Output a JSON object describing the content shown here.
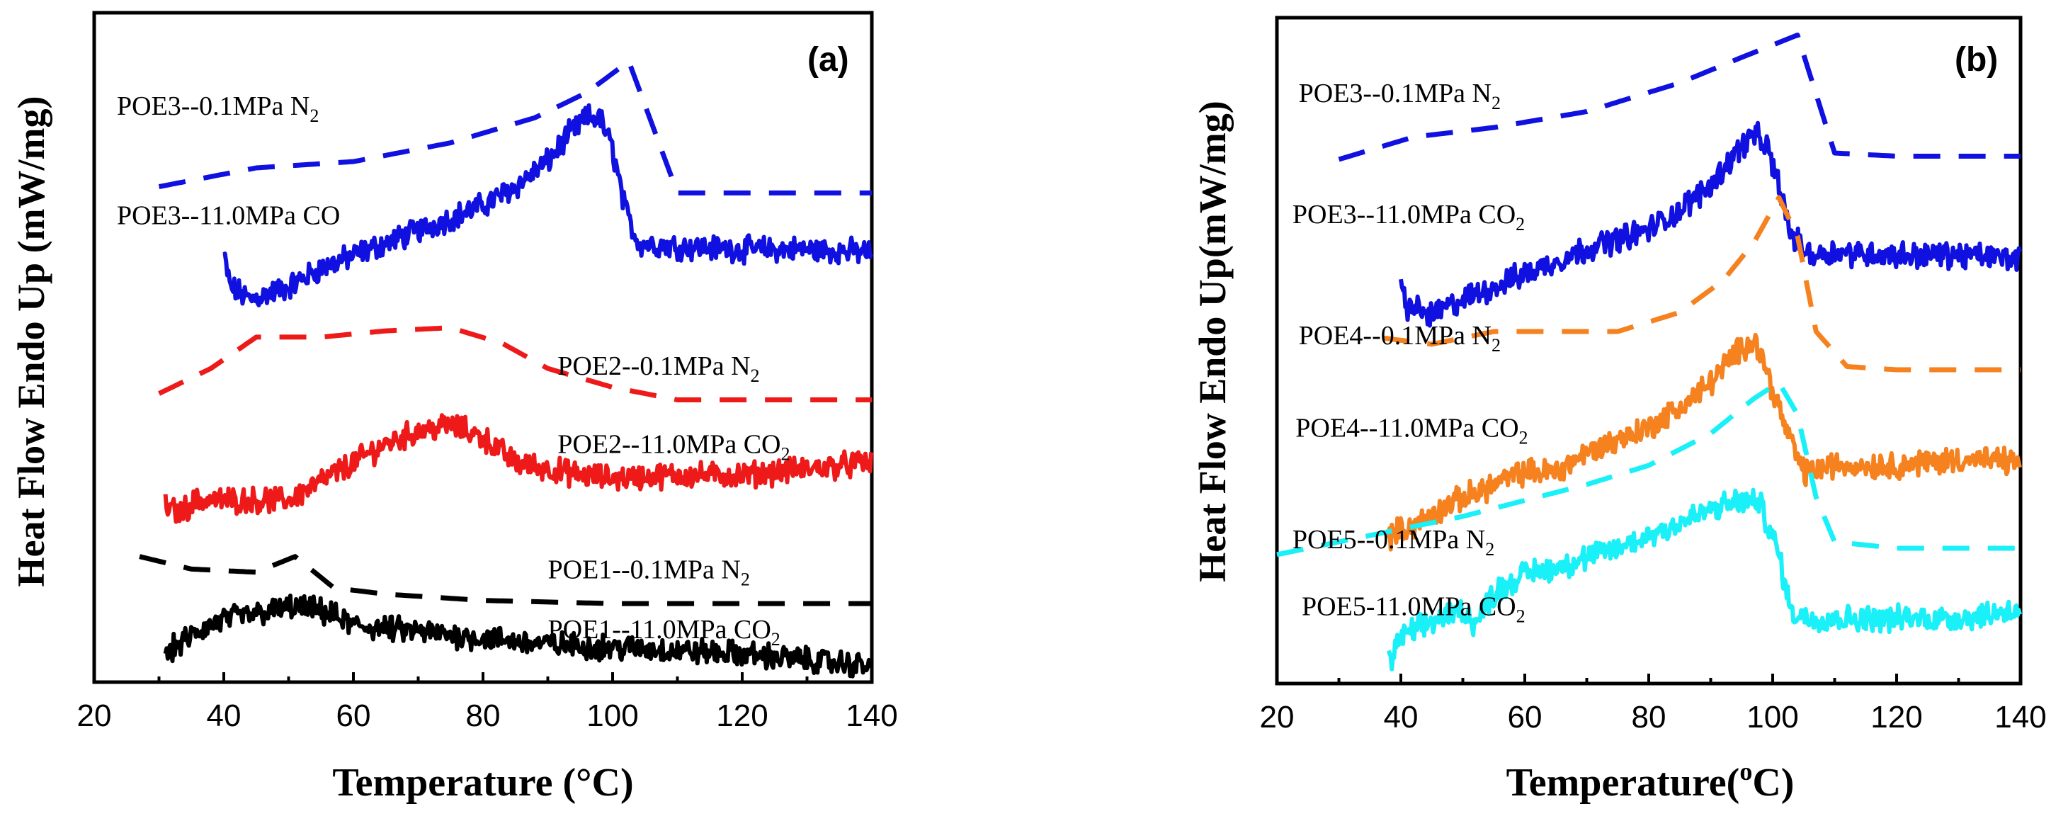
{
  "chart_data": [
    {
      "type": "line",
      "panel": "(a)",
      "xlabel": "Temperature (°C)",
      "ylabel": "Heat Flow Endo Up (mW/mg)",
      "xlim": [
        20,
        140
      ],
      "ylim": [
        0,
        100
      ],
      "xticks": [
        "20",
        "40",
        "60",
        "80",
        "100",
        "120",
        "140"
      ],
      "series": [
        {
          "name": "POE3--0.1MPa N2",
          "label_text": "POE3--0.1MPa N",
          "label_sub": "2",
          "color": "#1010e0",
          "style": "dashed",
          "label_at": [
            23.5,
            88.5
          ],
          "points": [
            [
              30,
              77
            ],
            [
              45,
              80
            ],
            [
              60,
              81
            ],
            [
              75,
              84
            ],
            [
              88,
              88
            ],
            [
              96,
              92
            ],
            [
              102.5,
              97
            ],
            [
              110,
              76
            ],
            [
              120,
              76
            ],
            [
              140,
              76
            ]
          ]
        },
        {
          "name": "POE3--11.0MPa CO",
          "label_text": "POE3--11.0MPa CO",
          "label_sub": "",
          "color": "#1010e0",
          "style": "noisy",
          "label_at": [
            23.5,
            71
          ],
          "points": [
            [
              40,
              66
            ],
            [
              41,
              61
            ],
            [
              44,
              59
            ],
            [
              50,
              61
            ],
            [
              55,
              64
            ],
            [
              60,
              66
            ],
            [
              65,
              68
            ],
            [
              70,
              70
            ],
            [
              75,
              72
            ],
            [
              80,
              74
            ],
            [
              85,
              77
            ],
            [
              90,
              81
            ],
            [
              93,
              85
            ],
            [
              96,
              88
            ],
            [
              98,
              88
            ],
            [
              100,
              83
            ],
            [
              102,
              73
            ],
            [
              104,
              68
            ],
            [
              110,
              67.5
            ],
            [
              120,
              67
            ],
            [
              130,
              67
            ],
            [
              140,
              66.5
            ]
          ]
        },
        {
          "name": "POE2--0.1MPa N2",
          "label_text": "POE2--0.1MPa N",
          "label_sub": "2",
          "color": "#ee1a1a",
          "style": "dashed",
          "label_at": [
            91.5,
            47
          ],
          "points": [
            [
              30,
              44
            ],
            [
              38,
              48
            ],
            [
              45,
              53
            ],
            [
              55,
              53
            ],
            [
              65,
              54
            ],
            [
              75,
              54.5
            ],
            [
              83,
              52
            ],
            [
              90,
              48
            ],
            [
              100,
              45
            ],
            [
              110,
              43
            ],
            [
              120,
              43
            ],
            [
              140,
              43
            ]
          ]
        },
        {
          "name": "POE2--11.0MPa CO2",
          "label_text": "POE2--11.0MPa CO",
          "label_sub": "2",
          "color": "#ee1a1a",
          "style": "noisy",
          "label_at": [
            91.5,
            34.5
          ],
          "points": [
            [
              31,
              26
            ],
            [
              33,
              25
            ],
            [
              36,
              27
            ],
            [
              45,
              27
            ],
            [
              50,
              27
            ],
            [
              55,
              30
            ],
            [
              60,
              33
            ],
            [
              65,
              36
            ],
            [
              70,
              38
            ],
            [
              75,
              39
            ],
            [
              80,
              37
            ],
            [
              85,
              33
            ],
            [
              90,
              32
            ],
            [
              95,
              31
            ],
            [
              100,
              30.5
            ],
            [
              110,
              31
            ],
            [
              120,
              31
            ],
            [
              130,
              32
            ],
            [
              140,
              33
            ]
          ]
        },
        {
          "name": "POE1--0.1MPa N2",
          "label_text": "POE1--0.1MPa N",
          "label_sub": "2",
          "color": "#000000",
          "style": "dashed",
          "label_at": [
            90,
            14.5
          ],
          "points": [
            [
              27,
              18
            ],
            [
              35,
              16
            ],
            [
              45,
              15.5
            ],
            [
              51,
              18
            ],
            [
              57,
              13
            ],
            [
              65,
              12
            ],
            [
              80,
              11
            ],
            [
              100,
              10.5
            ],
            [
              120,
              10.5
            ],
            [
              140,
              10.5
            ]
          ]
        },
        {
          "name": "POE1--11.0MPa CO2",
          "label_text": "POE1--11.0MPa CO",
          "label_sub": "2",
          "color": "#000000",
          "style": "noisy",
          "label_at": [
            90,
            5
          ],
          "points": [
            [
              31,
              2.5
            ],
            [
              36,
              6
            ],
            [
              40,
              8
            ],
            [
              46,
              9
            ],
            [
              51,
              10
            ],
            [
              56,
              9
            ],
            [
              60,
              7
            ],
            [
              70,
              6
            ],
            [
              80,
              5
            ],
            [
              90,
              4
            ],
            [
              100,
              3.5
            ],
            [
              110,
              3
            ],
            [
              120,
              2.5
            ],
            [
              130,
              1.5
            ],
            [
              140,
              0.5
            ]
          ]
        }
      ]
    },
    {
      "type": "line",
      "panel": "(b)",
      "xlabel": "Temperature(°C)",
      "xlabel_parts": [
        "Temperature(",
        "o",
        "C)"
      ],
      "ylabel": "Heat Flow Endo Up(mW/mg)",
      "xlim": [
        20,
        140
      ],
      "ylim": [
        0,
        100
      ],
      "xticks": [
        "20",
        "40",
        "60",
        "80",
        "100",
        "120",
        "140"
      ],
      "series": [
        {
          "name": "POE3--0.1MPa N2",
          "label_text": "POE3--0.1MPa N",
          "label_sub": "2",
          "color": "#1010e0",
          "style": "dashed",
          "label_at": [
            23.5,
            89
          ],
          "points": [
            [
              30,
              80
            ],
            [
              42,
              83.5
            ],
            [
              55,
              85
            ],
            [
              70,
              87.5
            ],
            [
              85,
              92
            ],
            [
              95,
              96
            ],
            [
              104,
              99.5
            ],
            [
              110,
              81
            ],
            [
              120,
              80.5
            ],
            [
              140,
              80.5
            ]
          ]
        },
        {
          "name": "POE3--11.0MPa CO2",
          "label_text": "POE3--11.0MPa CO",
          "label_sub": "2",
          "color": "#1010e0",
          "style": "noisy",
          "label_at": [
            22.5,
            70
          ],
          "points": [
            [
              40,
              60
            ],
            [
              41,
              57
            ],
            [
              45,
              55.5
            ],
            [
              50,
              58
            ],
            [
              55,
              60
            ],
            [
              60,
              62
            ],
            [
              65,
              64
            ],
            [
              70,
              66
            ],
            [
              75,
              67.5
            ],
            [
              80,
              69
            ],
            [
              85,
              72
            ],
            [
              90,
              76
            ],
            [
              94,
              81
            ],
            [
              97,
              84
            ],
            [
              99,
              82
            ],
            [
              101,
              76
            ],
            [
              103,
              68
            ],
            [
              106,
              65
            ],
            [
              110,
              65.5
            ],
            [
              120,
              65
            ],
            [
              130,
              65
            ],
            [
              140,
              64.5
            ]
          ]
        },
        {
          "name": "POE4--0.1MPa N2",
          "label_text": "POE4--0.1MPa N",
          "label_sub": "2",
          "color": "#f5811f",
          "style": "dashed",
          "label_at": [
            23.5,
            51
          ],
          "points": [
            [
              37,
              52
            ],
            [
              45,
              51
            ],
            [
              55,
              53
            ],
            [
              75,
              53
            ],
            [
              85,
              56
            ],
            [
              92,
              61
            ],
            [
              97,
              67
            ],
            [
              101,
              74
            ],
            [
              104,
              68
            ],
            [
              107,
              53
            ],
            [
              112,
              47.5
            ],
            [
              120,
              47
            ],
            [
              140,
              47
            ]
          ]
        },
        {
          "name": "POE4--11.0MPa CO2",
          "label_text": "POE4--11.0MPa CO",
          "label_sub": "2",
          "color": "#f5811f",
          "style": "noisy",
          "label_at": [
            23,
            36.5
          ],
          "points": [
            [
              38,
              21
            ],
            [
              43,
              23
            ],
            [
              48,
              26
            ],
            [
              55,
              29
            ],
            [
              60,
              31
            ],
            [
              65,
              31
            ],
            [
              70,
              34
            ],
            [
              75,
              36
            ],
            [
              80,
              38
            ],
            [
              85,
              41
            ],
            [
              90,
              45
            ],
            [
              94,
              49.5
            ],
            [
              97,
              52
            ],
            [
              99,
              47
            ],
            [
              102,
              38
            ],
            [
              105,
              31
            ],
            [
              110,
              32
            ],
            [
              120,
              32
            ],
            [
              130,
              33
            ],
            [
              140,
              32.5
            ]
          ]
        },
        {
          "name": "POE5--0.1MPa N2",
          "label_text": "POE5--0.1MPa N",
          "label_sub": "2",
          "color": "#19f0f7",
          "style": "dashed",
          "label_at": [
            22.5,
            19
          ],
          "points": [
            [
              20,
              18
            ],
            [
              30,
              20
            ],
            [
              40,
              22
            ],
            [
              50,
              24
            ],
            [
              60,
              26.5
            ],
            [
              70,
              29
            ],
            [
              80,
              32
            ],
            [
              90,
              37
            ],
            [
              97,
              42.5
            ],
            [
              101,
              45
            ],
            [
              104,
              40
            ],
            [
              107,
              27
            ],
            [
              110,
              20
            ],
            [
              120,
              19
            ],
            [
              140,
              19
            ]
          ]
        },
        {
          "name": "POE5-11.0MPa CO2",
          "label_text": "POE5-11.0MPa CO",
          "label_sub": "2",
          "color": "#19f0f7",
          "style": "noisy",
          "label_at": [
            24,
            8.5
          ],
          "points": [
            [
              38,
              1
            ],
            [
              40,
              5
            ],
            [
              45,
              7.5
            ],
            [
              50,
              9.5
            ],
            [
              52,
              7
            ],
            [
              55,
              12
            ],
            [
              60,
              15
            ],
            [
              65,
              16
            ],
            [
              70,
              17.5
            ],
            [
              75,
              19
            ],
            [
              80,
              21
            ],
            [
              85,
              23
            ],
            [
              90,
              25
            ],
            [
              95,
              26.5
            ],
            [
              98,
              26
            ],
            [
              101,
              18
            ],
            [
              103,
              9
            ],
            [
              106,
              8
            ],
            [
              110,
              8
            ],
            [
              120,
              8
            ],
            [
              130,
              8
            ],
            [
              140,
              9.5
            ]
          ]
        }
      ]
    }
  ]
}
